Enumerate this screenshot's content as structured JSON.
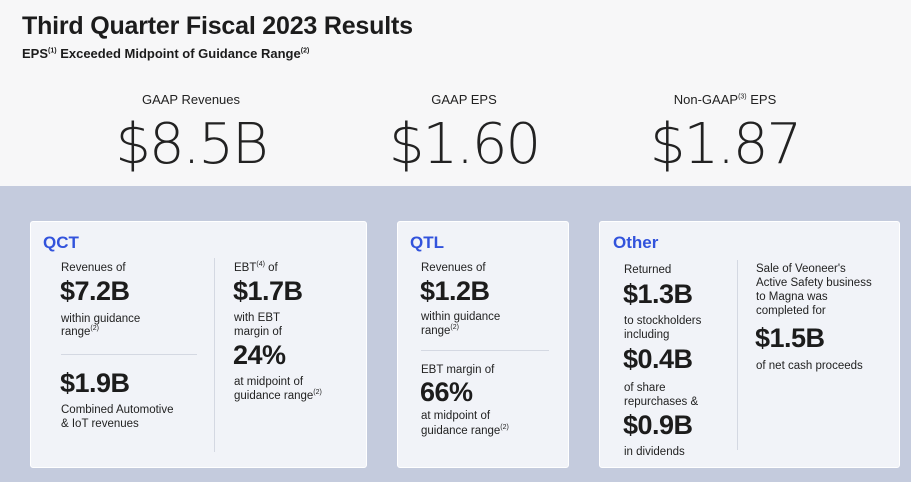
{
  "header": {
    "title": "Third Quarter Fiscal 2023 Results",
    "subtitle_prefix": "EPS",
    "subtitle_sup1": "(1)",
    "subtitle_text": " Exceeded Midpoint of Guidance Range",
    "subtitle_sup2": "(2)"
  },
  "kpis": [
    {
      "label": "GAAP Revenues",
      "value": "$8.5B"
    },
    {
      "label": "GAAP EPS",
      "value": "$1.60"
    },
    {
      "label_prefix": "Non-GAAP",
      "label_sup": "(3)",
      "label_suffix": " EPS",
      "value": "$1.87"
    }
  ],
  "qct": {
    "title": "QCT",
    "revenues_label": "Revenues of",
    "revenues_value": "$7.2B",
    "revenues_note_1": "within guidance",
    "revenues_note_2": "range",
    "revenues_note_sup": "(2)",
    "iot_value": "$1.9B",
    "iot_note_1": "Combined Automotive",
    "iot_note_2": "& IoT revenues",
    "ebt_label_prefix": "EBT",
    "ebt_label_sup": "(4)",
    "ebt_label_suffix": " of",
    "ebt_value": "$1.7B",
    "ebt_note_1": "with EBT",
    "ebt_note_2": "margin of",
    "margin_value": "24%",
    "margin_note_1": "at midpoint of",
    "margin_note_2": "guidance range",
    "margin_note_sup": "(2)"
  },
  "qtl": {
    "title": "QTL",
    "revenues_label": "Revenues of",
    "revenues_value": "$1.2B",
    "revenues_note_1": "within guidance",
    "revenues_note_2": "range",
    "revenues_note_sup": "(2)",
    "margin_label": "EBT margin of",
    "margin_value": "66%",
    "margin_note_1": "at midpoint of",
    "margin_note_2": "guidance range",
    "margin_note_sup": "(2)"
  },
  "other": {
    "title": "Other",
    "returned_label": "Returned",
    "returned_value": "$1.3B",
    "returned_note_1": "to stockholders",
    "returned_note_2": "including",
    "repurchase_value": "$0.4B",
    "repurchase_note_1": "of share",
    "repurchase_note_2": "repurchases &",
    "dividend_value": "$0.9B",
    "dividend_note": "in dividends",
    "sale_line_1": "Sale of Veoneer's",
    "sale_line_2": "Active Safety business",
    "sale_line_3": "to Magna was",
    "sale_line_4": "completed for",
    "sale_value": "$1.5B",
    "sale_note": "of net cash proceeds"
  },
  "colors": {
    "accent": "#3253dc",
    "top_background": "#f7f7f8",
    "page_background": "#c4cbdd",
    "card_background": "#f1f3f8"
  }
}
